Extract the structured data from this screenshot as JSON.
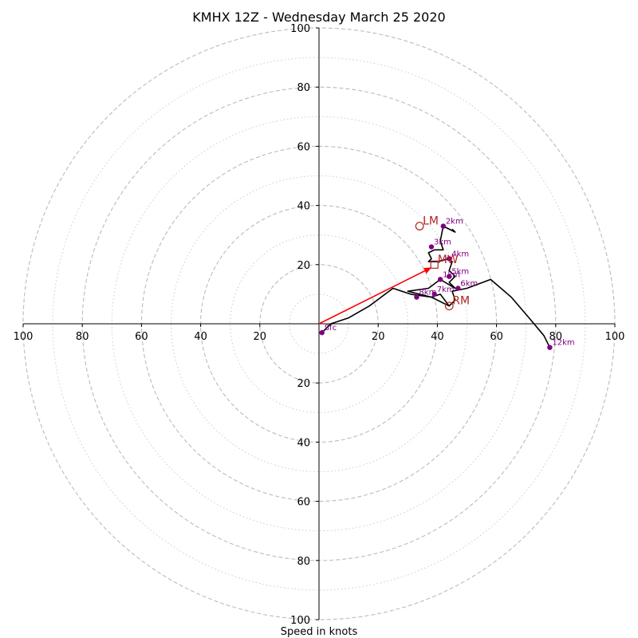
{
  "chart_data": {
    "type": "hodograph",
    "title": "KMHX 12Z - Wednesday March 25 2020",
    "xlabel": "Speed in knots",
    "ylabel": "",
    "range": [
      -100,
      100
    ],
    "rings_major": [
      20,
      40,
      60,
      80,
      100
    ],
    "rings_minor": [
      10,
      30,
      50,
      70,
      90
    ],
    "tick_values": [
      20,
      40,
      60,
      80,
      100
    ],
    "tick_labels": [
      "20",
      "40",
      "60",
      "80",
      "100"
    ],
    "grid": true,
    "trace": [
      [
        1,
        -3
      ],
      [
        4,
        0
      ],
      [
        10,
        2
      ],
      [
        17,
        6
      ],
      [
        25,
        12
      ],
      [
        31,
        10
      ],
      [
        38,
        9
      ],
      [
        44,
        6
      ],
      [
        46,
        8
      ],
      [
        45,
        11
      ],
      [
        50,
        12
      ],
      [
        58,
        15
      ],
      [
        65,
        9
      ],
      [
        71,
        2
      ],
      [
        76,
        -4
      ],
      [
        78,
        -8
      ]
    ],
    "trace_low": [
      [
        44,
        6
      ],
      [
        41,
        10
      ],
      [
        38,
        9
      ],
      [
        30,
        11
      ],
      [
        37,
        12
      ],
      [
        41,
        15
      ],
      [
        46,
        12
      ],
      [
        44,
        14
      ],
      [
        46,
        16
      ],
      [
        44,
        18
      ],
      [
        45,
        21
      ],
      [
        44,
        22
      ],
      [
        40,
        21
      ],
      [
        37,
        21
      ],
      [
        38,
        22
      ],
      [
        37,
        24
      ],
      [
        39,
        25
      ],
      [
        42,
        25
      ],
      [
        41,
        28
      ],
      [
        42,
        33
      ],
      [
        46,
        31
      ],
      [
        45,
        32
      ]
    ],
    "height_markers": [
      {
        "label": "Sfc",
        "u": 1,
        "v": -3
      },
      {
        "label": "1km",
        "u": 41,
        "v": 15
      },
      {
        "label": "2km",
        "u": 42,
        "v": 33
      },
      {
        "label": "3km",
        "u": 38,
        "v": 26
      },
      {
        "label": "4km",
        "u": 44,
        "v": 22
      },
      {
        "label": "5km",
        "u": 44,
        "v": 16
      },
      {
        "label": "6km",
        "u": 47,
        "v": 12
      },
      {
        "label": "7km",
        "u": 39,
        "v": 10
      },
      {
        "label": "8km",
        "u": 33,
        "v": 9
      },
      {
        "label": "12km",
        "u": 78,
        "v": -8
      }
    ],
    "motion_markers": [
      {
        "label": "LM",
        "u": 34,
        "v": 33,
        "shape": "circle"
      },
      {
        "label": "MW",
        "u": 39,
        "v": 20,
        "shape": "square"
      },
      {
        "label": "RM",
        "u": 44,
        "v": 6,
        "shape": "circle"
      }
    ],
    "storm_vector": {
      "from": [
        0,
        0
      ],
      "to": [
        38,
        19
      ]
    },
    "colors": {
      "trace": "#000000",
      "height_marker": "#800080",
      "motion": "#b22222",
      "vector": "#ff0000",
      "grid": "#bbbbbb"
    }
  }
}
